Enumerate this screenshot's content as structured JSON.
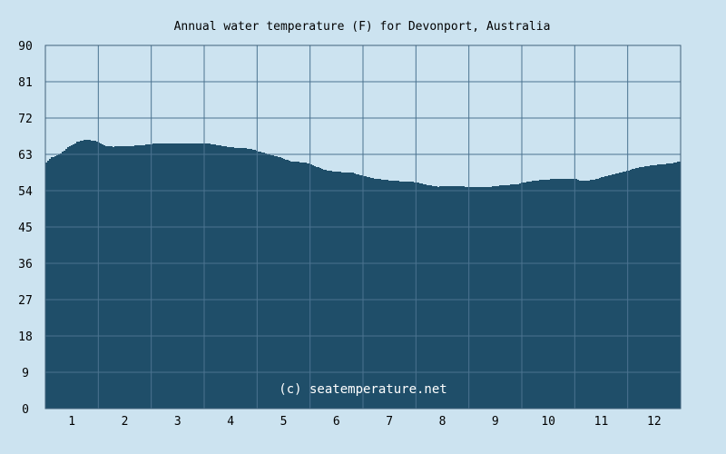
{
  "chart_data": {
    "type": "area",
    "title": "Annual water temperature (F) for Devonport, Australia",
    "xlabel": "",
    "ylabel": "",
    "categories": [
      "1",
      "2",
      "3",
      "4",
      "5",
      "6",
      "7",
      "8",
      "9",
      "10",
      "11",
      "12"
    ],
    "ylim": [
      0,
      90
    ],
    "yticks": [
      "0",
      "9",
      "18",
      "27",
      "36",
      "45",
      "54",
      "63",
      "72",
      "81",
      "90"
    ],
    "grid": true,
    "series": [
      {
        "values_by_month_position": [
          [
            0.0,
            61.0
          ],
          [
            0.1,
            62.2
          ],
          [
            0.25,
            63.0
          ],
          [
            0.4,
            64.6
          ],
          [
            0.6,
            66.2
          ],
          [
            0.75,
            66.6
          ],
          [
            0.9,
            66.4
          ],
          [
            1.0,
            66.0
          ],
          [
            1.1,
            65.2
          ],
          [
            1.25,
            64.9
          ],
          [
            1.5,
            65.0
          ],
          [
            1.75,
            65.2
          ],
          [
            2.0,
            65.6
          ],
          [
            2.2,
            65.8
          ],
          [
            2.5,
            65.7
          ],
          [
            2.75,
            65.6
          ],
          [
            3.0,
            65.8
          ],
          [
            3.2,
            65.4
          ],
          [
            3.4,
            64.9
          ],
          [
            3.6,
            64.6
          ],
          [
            3.85,
            64.4
          ],
          [
            4.0,
            63.8
          ],
          [
            4.2,
            63.0
          ],
          [
            4.4,
            62.4
          ],
          [
            4.5,
            61.8
          ],
          [
            4.65,
            61.2
          ],
          [
            4.9,
            61.0
          ],
          [
            5.0,
            60.6
          ],
          [
            5.2,
            59.4
          ],
          [
            5.4,
            58.8
          ],
          [
            5.6,
            58.6
          ],
          [
            5.8,
            58.4
          ],
          [
            6.0,
            57.6
          ],
          [
            6.2,
            57.0
          ],
          [
            6.5,
            56.5
          ],
          [
            6.75,
            56.3
          ],
          [
            6.9,
            56.3
          ],
          [
            7.0,
            56.0
          ],
          [
            7.2,
            55.4
          ],
          [
            7.4,
            55.0
          ],
          [
            7.6,
            55.2
          ],
          [
            7.8,
            55.1
          ],
          [
            8.0,
            54.9
          ],
          [
            8.2,
            54.8
          ],
          [
            8.4,
            55.0
          ],
          [
            8.6,
            55.3
          ],
          [
            8.9,
            55.6
          ],
          [
            9.0,
            56.0
          ],
          [
            9.25,
            56.5
          ],
          [
            9.5,
            56.8
          ],
          [
            9.75,
            57.0
          ],
          [
            10.0,
            56.9
          ],
          [
            10.1,
            56.5
          ],
          [
            10.3,
            56.6
          ],
          [
            10.5,
            57.3
          ],
          [
            10.75,
            58.2
          ],
          [
            11.0,
            59.0
          ],
          [
            11.2,
            59.8
          ],
          [
            11.45,
            60.3
          ],
          [
            11.7,
            60.6
          ],
          [
            11.9,
            61.0
          ],
          [
            12.0,
            61.4
          ]
        ]
      }
    ],
    "colors": {
      "background": "#cce3f0",
      "fill": "#1f4e69",
      "grid_above": "#40617a",
      "grid_below": "#4b7390",
      "axis_text": "#000000",
      "credit_text": "#ffffff"
    }
  },
  "credit": "(c) seatemperature.net"
}
